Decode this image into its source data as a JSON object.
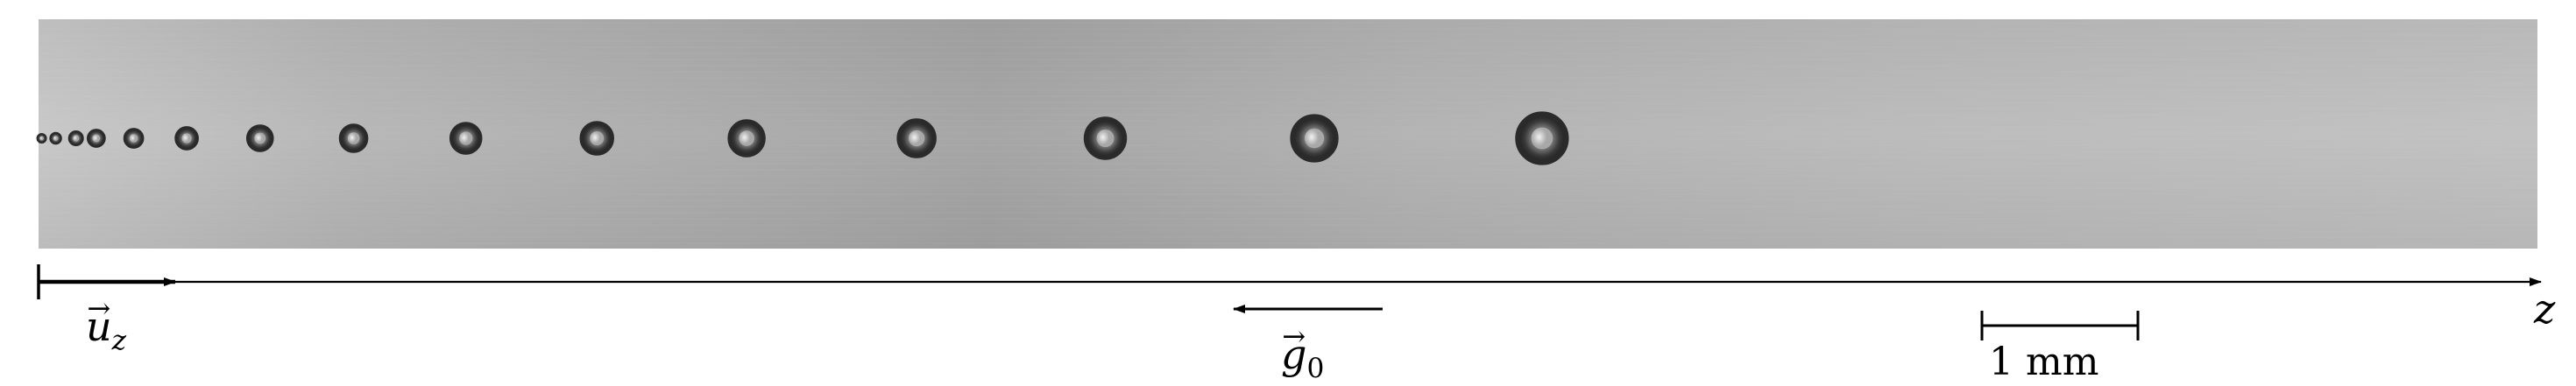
{
  "figure": {
    "axis_label": "z",
    "unit_vector": {
      "symbol": "u",
      "subscript": "z",
      "accent": "→"
    },
    "gravity_vector": {
      "symbol": "g",
      "subscript": "0",
      "accent": "→"
    },
    "scale_bar": {
      "label": "1 mm",
      "length_mm": 1
    },
    "colors": {
      "background_light": "#c4c4c4",
      "background_dark": "#9a9a9a",
      "bubble_edge": "#2a2a2a",
      "ink": "#000000"
    },
    "bubbles": [
      {
        "position_mm": 0.02,
        "diameter_mm": 0.04
      },
      {
        "position_mm": 0.11,
        "diameter_mm": 0.07
      },
      {
        "position_mm": 0.24,
        "diameter_mm": 0.09
      },
      {
        "position_mm": 0.37,
        "diameter_mm": 0.11
      },
      {
        "position_mm": 0.61,
        "diameter_mm": 0.12
      },
      {
        "position_mm": 0.95,
        "diameter_mm": 0.14
      },
      {
        "position_mm": 1.42,
        "diameter_mm": 0.16
      },
      {
        "position_mm": 2.02,
        "diameter_mm": 0.17
      },
      {
        "position_mm": 2.74,
        "diameter_mm": 0.19
      },
      {
        "position_mm": 3.58,
        "diameter_mm": 0.2
      },
      {
        "position_mm": 4.54,
        "diameter_mm": 0.22
      },
      {
        "position_mm": 5.63,
        "diameter_mm": 0.23
      },
      {
        "position_mm": 6.84,
        "diameter_mm": 0.25
      },
      {
        "position_mm": 8.18,
        "diameter_mm": 0.28
      },
      {
        "position_mm": 9.64,
        "diameter_mm": 0.31
      }
    ]
  }
}
